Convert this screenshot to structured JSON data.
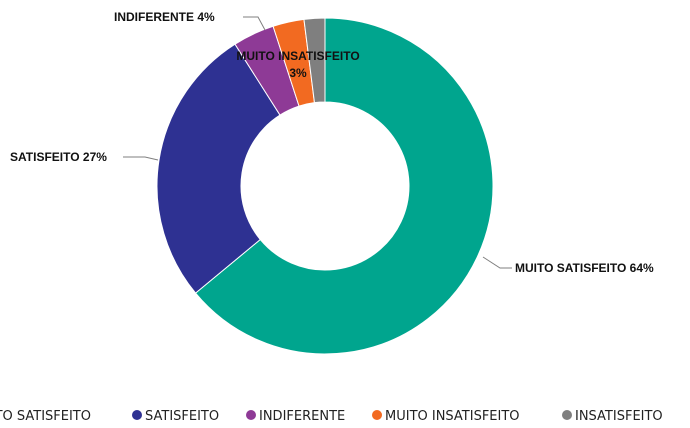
{
  "chart_data": {
    "type": "pie",
    "variant": "donut",
    "title": "",
    "slices": [
      {
        "label": "MUITO SATISFEITO",
        "value": 64,
        "color": "#00A58E",
        "data_label": "MUITO SATISFEITO 64%"
      },
      {
        "label": "SATISFEITO",
        "value": 27,
        "color": "#2E3192",
        "data_label": "SATISFEITO 27%"
      },
      {
        "label": "INDIFERENTE",
        "value": 4,
        "color": "#8E3A96",
        "data_label": "INDIFERENTE 4%"
      },
      {
        "label": "MUITO INSATISFEITO",
        "value": 3,
        "color": "#F26A21",
        "data_label_lines": [
          "MUITO INSATISFEITO",
          "3%"
        ]
      },
      {
        "label": "INSATISFEITO",
        "value": 2,
        "color": "#7F7F7F",
        "data_label": ""
      }
    ],
    "legend": {
      "position": "bottom",
      "items": [
        "MUITO SATISFEITO",
        "SATISFEITO",
        "INDIFERENTE",
        "MUITO INSATISFEITO",
        "INSATISFEITO"
      ]
    }
  }
}
